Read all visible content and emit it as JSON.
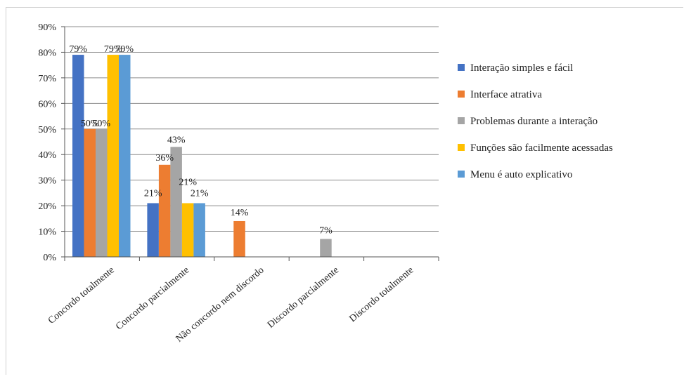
{
  "chart_data": {
    "type": "bar",
    "title": "",
    "xlabel": "",
    "ylabel": "",
    "ylim": [
      0,
      90
    ],
    "y_ticks": [
      "0%",
      "10%",
      "20%",
      "30%",
      "40%",
      "50%",
      "60%",
      "70%",
      "80%",
      "90%"
    ],
    "grid": true,
    "legend_position": "right",
    "categories": [
      "Concordo totalmente",
      "Concordo parcialmente",
      "Não concordo nem discordo",
      "Discordo parcialmente",
      "Discordo totalmente"
    ],
    "series": [
      {
        "name": "Interação simples e fácil",
        "color": "#4472C4",
        "values": [
          79,
          21,
          0,
          0,
          0
        ],
        "labels": [
          "79%",
          "21%",
          "",
          "",
          ""
        ]
      },
      {
        "name": "Interface atrativa",
        "color": "#ED7D31",
        "values": [
          50,
          36,
          14,
          0,
          0
        ],
        "labels": [
          "50%",
          "36%",
          "14%",
          "",
          ""
        ]
      },
      {
        "name": "Problemas durante a interação",
        "color": "#A5A5A5",
        "values": [
          50,
          43,
          0,
          7,
          0
        ],
        "labels": [
          "50%",
          "43%",
          "",
          "7%",
          ""
        ]
      },
      {
        "name": "Funções são facilmente acessadas",
        "color": "#FFC000",
        "values": [
          79,
          21,
          0,
          0,
          0
        ],
        "labels": [
          "79%",
          "21%",
          "",
          "",
          ""
        ]
      },
      {
        "name": "Menu é auto explicativo",
        "color": "#5B9BD5",
        "values": [
          79,
          21,
          0,
          0,
          0
        ],
        "labels": [
          "79%",
          "21%",
          "",
          "",
          ""
        ]
      }
    ]
  }
}
